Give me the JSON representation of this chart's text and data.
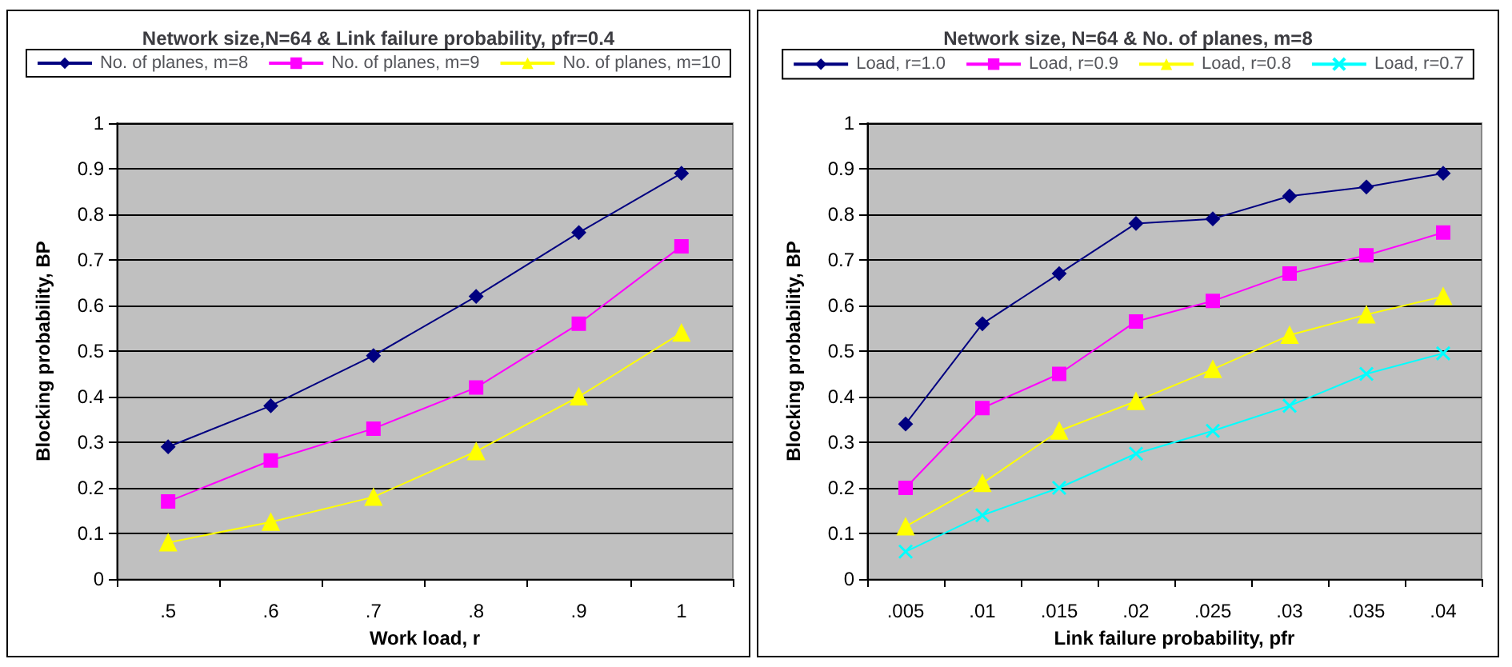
{
  "chart_data": [
    {
      "type": "line",
      "title": "Network size,N=64 & Link failure probability, pfr=0.4",
      "xlabel": "Work load, r",
      "ylabel": "Blocking probability, BP",
      "categories": [
        ".5",
        ".6",
        ".7",
        ".8",
        ".9",
        "1"
      ],
      "ylim": [
        0,
        1
      ],
      "yticks": [
        0,
        0.1,
        0.2,
        0.3,
        0.4,
        0.5,
        0.6,
        0.7,
        0.8,
        0.9,
        1
      ],
      "grid": "y",
      "legend": "top",
      "series": [
        {
          "name": "No. of planes, m=8",
          "color": "#000080",
          "marker": "diamond",
          "values": [
            0.29,
            0.38,
            0.49,
            0.62,
            0.76,
            0.89
          ]
        },
        {
          "name": "No. of planes, m=9",
          "color": "#ff00ff",
          "marker": "square",
          "values": [
            0.17,
            0.26,
            0.33,
            0.42,
            0.56,
            0.73
          ]
        },
        {
          "name": "No. of planes, m=10",
          "color": "#ffff00",
          "marker": "triangle",
          "values": [
            0.08,
            0.125,
            0.18,
            0.28,
            0.4,
            0.54
          ]
        }
      ]
    },
    {
      "type": "line",
      "title": "Network size, N=64 & No. of planes, m=8",
      "xlabel": "Link failure probability, pfr",
      "ylabel": "Blocking probability, BP",
      "categories": [
        ".005",
        ".01",
        ".015",
        ".02",
        ".025",
        ".03",
        ".035",
        ".04"
      ],
      "ylim": [
        0,
        1
      ],
      "yticks": [
        0,
        0.1,
        0.2,
        0.3,
        0.4,
        0.5,
        0.6,
        0.7,
        0.8,
        0.9,
        1
      ],
      "grid": "y",
      "legend": "top",
      "series": [
        {
          "name": "Load, r=1.0",
          "color": "#000080",
          "marker": "diamond",
          "values": [
            0.34,
            0.56,
            0.67,
            0.78,
            0.79,
            0.84,
            0.86,
            0.89
          ]
        },
        {
          "name": "Load, r=0.9",
          "color": "#ff00ff",
          "marker": "square",
          "values": [
            0.2,
            0.375,
            0.45,
            0.565,
            0.61,
            0.67,
            0.71,
            0.76
          ]
        },
        {
          "name": "Load, r=0.8",
          "color": "#ffff00",
          "marker": "triangle",
          "values": [
            0.115,
            0.21,
            0.325,
            0.39,
            0.46,
            0.535,
            0.58,
            0.62
          ]
        },
        {
          "name": "Load, r=0.7",
          "color": "#00ffff",
          "marker": "cross",
          "values": [
            0.06,
            0.14,
            0.2,
            0.275,
            0.325,
            0.38,
            0.45,
            0.495
          ]
        }
      ]
    }
  ]
}
